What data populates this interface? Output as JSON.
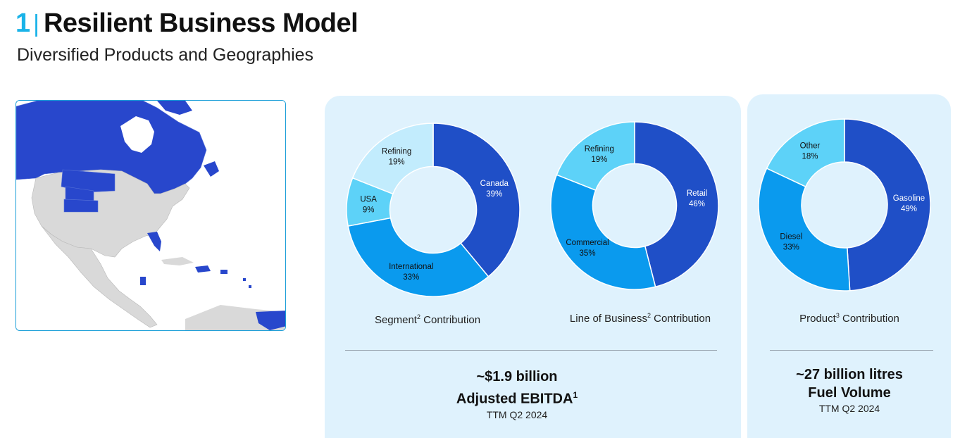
{
  "header": {
    "number": "1",
    "title": "Resilient Business Model",
    "subtitle": "Diversified Products and Geographies"
  },
  "colors": {
    "accent": "#1ab3e8",
    "dark_blue": "#1f4fc7",
    "mid_blue": "#0a9aee",
    "light_blue": "#5dd2f8",
    "pale_blue": "#c2ecfd",
    "panel_bg": "#dff2fd",
    "map_highlight": "#2847cc",
    "map_base": "#d9d9d9"
  },
  "map": {
    "icon": "north-america-operations-map"
  },
  "chart_data": [
    {
      "type": "pie",
      "donut": true,
      "caption": "Segment",
      "caption_sup": "2",
      "caption_tail": " Contribution",
      "slices": [
        {
          "name": "Canada",
          "value": 39,
          "label": "39%",
          "color": "#1f4fc7"
        },
        {
          "name": "International",
          "value": 33,
          "label": "33%",
          "color": "#0a9aee"
        },
        {
          "name": "USA",
          "value": 9,
          "label": "9%",
          "color": "#5dd2f8"
        },
        {
          "name": "Refining",
          "value": 19,
          "label": "19%",
          "color": "#c2ecfd"
        }
      ]
    },
    {
      "type": "pie",
      "donut": true,
      "caption": "Line of Business",
      "caption_sup": "2",
      "caption_tail": " Contribution",
      "slices": [
        {
          "name": "Retail",
          "value": 46,
          "label": "46%",
          "color": "#1f4fc7"
        },
        {
          "name": "Commercial",
          "value": 35,
          "label": "35%",
          "color": "#0a9aee"
        },
        {
          "name": "Refining",
          "value": 19,
          "label": "19%",
          "color": "#5dd2f8"
        }
      ]
    },
    {
      "type": "pie",
      "donut": true,
      "caption": "Product",
      "caption_sup": "3",
      "caption_tail": " Contribution",
      "slices": [
        {
          "name": "Gasoline",
          "value": 49,
          "label": "49%",
          "color": "#1f4fc7"
        },
        {
          "name": "Diesel",
          "value": 33,
          "label": "33%",
          "color": "#0a9aee"
        },
        {
          "name": "Other",
          "value": 18,
          "label": "18%",
          "color": "#5dd2f8"
        }
      ]
    }
  ],
  "metrics": {
    "ebitda": {
      "line1": "~$1.9 billion",
      "line2": "Adjusted EBITDA",
      "line2_sup": "1",
      "period": "TTM Q2 2024"
    },
    "fuel": {
      "line1": "~27 billion litres",
      "line2": "Fuel Volume",
      "period": "TTM Q2 2024"
    }
  }
}
